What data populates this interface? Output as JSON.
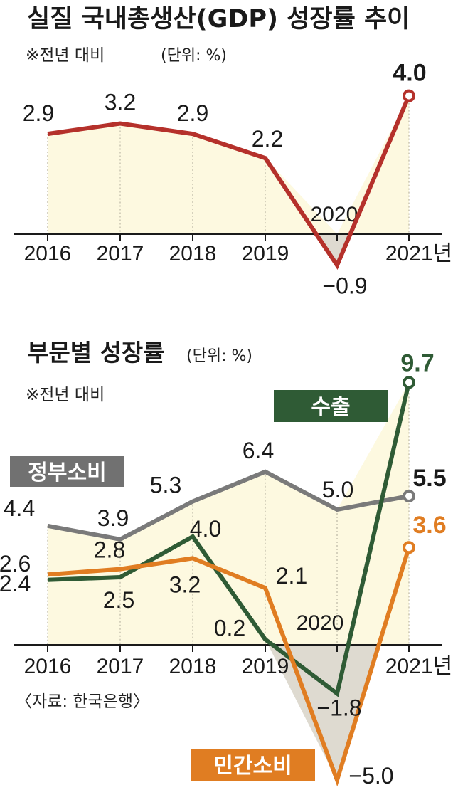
{
  "chart_data": [
    {
      "type": "line",
      "title": "실질 국내총생산(GDP) 성장률 추이",
      "note": "※전년 대비",
      "unit": "(단위: %)",
      "categories": [
        "2016",
        "2017",
        "2018",
        "2019",
        "2020",
        "2021"
      ],
      "x_tick_labels": [
        "2016",
        "2017",
        "2018",
        "2019",
        "2020",
        "2021년"
      ],
      "series": [
        {
          "values": [
            2.9,
            3.2,
            2.9,
            2.2,
            -0.9,
            4.0
          ],
          "color": "#b5312b",
          "labels": [
            "2.9",
            "3.2",
            "2.9",
            "2.2",
            "−0.9",
            "4.0"
          ]
        }
      ],
      "colors": {
        "fill_positive": "#fdf9e0",
        "fill_negative": "#dedad0",
        "grid_dots": "#c8c4b0"
      }
    },
    {
      "type": "line",
      "title": "부문별 성장률",
      "unit": "(단위: %)",
      "note": "※전년 대비",
      "categories": [
        "2016",
        "2017",
        "2018",
        "2019",
        "2020",
        "2021"
      ],
      "x_tick_labels": [
        "2016",
        "2017",
        "2018",
        "2019",
        "2020",
        "2021년"
      ],
      "series": [
        {
          "name": "정부소비",
          "color": "#7a7a7a",
          "values": [
            4.4,
            3.9,
            5.3,
            6.4,
            5.0,
            5.5
          ],
          "labels": [
            "4.4",
            "3.9",
            "5.3",
            "6.4",
            "5.0",
            "5.5"
          ]
        },
        {
          "name": "수출",
          "color": "#2f5b35",
          "values": [
            2.4,
            2.5,
            4.0,
            0.2,
            -1.8,
            9.7
          ],
          "labels": [
            "2.4",
            "2.5",
            "4.0",
            "0.2",
            "−1.8",
            "9.7"
          ]
        },
        {
          "name": "민간소비",
          "color": "#e07d22",
          "values": [
            2.6,
            2.8,
            3.2,
            2.1,
            -5.0,
            3.6
          ],
          "labels": [
            "2.6",
            "2.8",
            "3.2",
            "2.1",
            "−5.0",
            "3.6"
          ]
        }
      ],
      "source": "〈자료: 한국은행〉",
      "colors": {
        "fill_positive": "#fdf9e0",
        "fill_negative": "#dedad0",
        "grid_dots": "#c8c4b0"
      }
    }
  ]
}
